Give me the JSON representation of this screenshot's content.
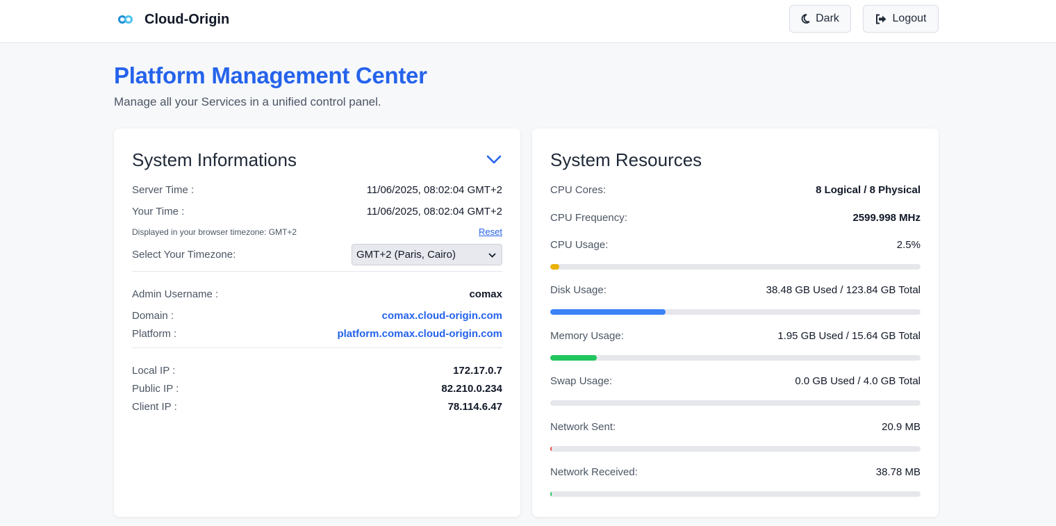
{
  "header": {
    "brand": "Cloud-Origin",
    "dark_label": "Dark",
    "logout_label": "Logout"
  },
  "page": {
    "title": "Platform Management Center",
    "subtitle": "Manage all your Services in a unified control panel."
  },
  "system_info": {
    "title": "System Informations",
    "server_time_label": "Server Time :",
    "server_time": "11/06/2025, 08:02:04 GMT+2",
    "your_time_label": "Your Time :",
    "your_time": "11/06/2025, 08:02:04 GMT+2",
    "tz_note": "Displayed in your browser timezone: GMT+2",
    "reset_label": "Reset",
    "select_tz_label": "Select Your Timezone:",
    "selected_tz": "GMT+2 (Paris, Cairo)",
    "admin_label": "Admin Username :",
    "admin": "comax",
    "domain_label": "Domain :",
    "domain": "comax.cloud-origin.com",
    "platform_label": "Platform :",
    "platform": "platform.comax.cloud-origin.com",
    "local_ip_label": "Local IP :",
    "local_ip": "172.17.0.7",
    "public_ip_label": "Public IP :",
    "public_ip": "82.210.0.234",
    "client_ip_label": "Client IP :",
    "client_ip": "78.114.6.47"
  },
  "resources": {
    "title": "System Resources",
    "cpu_cores_label": "CPU Cores:",
    "cpu_cores": "8 Logical / 8 Physical",
    "cpu_freq_label": "CPU Frequency:",
    "cpu_freq": "2599.998 MHz",
    "bars": [
      {
        "label": "CPU Usage:",
        "value": "2.5%",
        "pct": 2.5,
        "color": "#eab308"
      },
      {
        "label": "Disk Usage:",
        "value": "38.48 GB Used / 123.84 GB Total",
        "pct": 31.1,
        "color": "#3b82f6"
      },
      {
        "label": "Memory Usage:",
        "value": "1.95 GB Used / 15.64 GB Total",
        "pct": 12.5,
        "color": "#22c55e"
      },
      {
        "label": "Swap Usage:",
        "value": "0.0 GB Used / 4.0 GB Total",
        "pct": 0,
        "color": "#8b5cf6"
      },
      {
        "label": "Network Sent:",
        "value": "20.9 MB",
        "pct": 0.3,
        "color": "#ef4444"
      },
      {
        "label": "Network Received:",
        "value": "38.78 MB",
        "pct": 0.4,
        "color": "#22c55e"
      }
    ]
  }
}
